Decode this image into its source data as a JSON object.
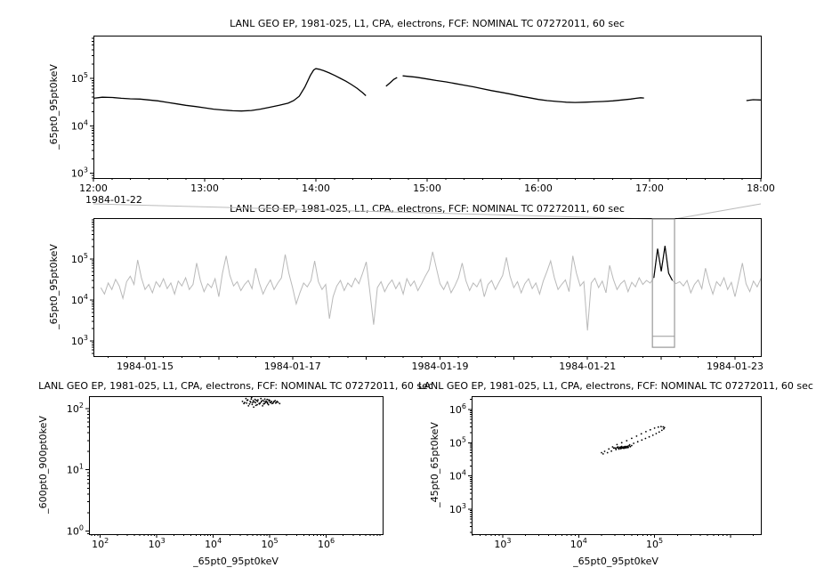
{
  "window": {
    "background": "#ffffff",
    "foreground": "#000000"
  },
  "colors": {
    "context_line": "#b9b9b9",
    "highlight": "#000000",
    "selection_box": "#999999",
    "connector": "#bbbbbb"
  },
  "chart_data": [
    {
      "id": "top-timeseries",
      "type": "line",
      "title": "LANL GEO EP, 1981-025, L1, CPA, electrons, FCF: NOMINAL TC 07272011, 60 sec",
      "ylabel": "_65pt0_95pt0keV",
      "x_context_label": "1984-01-22",
      "xlim": [
        12,
        18
      ],
      "ylim_log": [
        2.9,
        5.9
      ],
      "y_tick_exponents": [
        3,
        4,
        5
      ],
      "x_ticks": [
        {
          "v": 12,
          "label": "12:00"
        },
        {
          "v": 13,
          "label": "13:00"
        },
        {
          "v": 14,
          "label": "14:00"
        },
        {
          "v": 15,
          "label": "15:00"
        },
        {
          "v": 16,
          "label": "16:00"
        },
        {
          "v": 17,
          "label": "17:00"
        },
        {
          "v": 18,
          "label": "18:00"
        }
      ],
      "line_color": "#000000",
      "segments": [
        [
          [
            12.0,
            38000
          ],
          [
            12.08,
            40000
          ],
          [
            12.17,
            39500
          ],
          [
            12.25,
            38000
          ],
          [
            12.33,
            37000
          ],
          [
            12.42,
            36500
          ],
          [
            12.5,
            35000
          ],
          [
            12.58,
            33500
          ],
          [
            12.67,
            31000
          ],
          [
            12.75,
            29000
          ],
          [
            12.83,
            27000
          ],
          [
            12.92,
            25500
          ],
          [
            13.0,
            24000
          ],
          [
            13.08,
            22500
          ],
          [
            13.17,
            21500
          ],
          [
            13.25,
            20800
          ],
          [
            13.33,
            20500
          ],
          [
            13.42,
            21000
          ],
          [
            13.5,
            22500
          ],
          [
            13.58,
            24500
          ],
          [
            13.67,
            27000
          ],
          [
            13.75,
            30000
          ],
          [
            13.8,
            34000
          ],
          [
            13.85,
            42000
          ],
          [
            13.9,
            65000
          ],
          [
            13.95,
            115000
          ],
          [
            13.98,
            150000
          ],
          [
            14.0,
            160000
          ],
          [
            14.03,
            155000
          ],
          [
            14.07,
            145000
          ],
          [
            14.12,
            130000
          ],
          [
            14.17,
            115000
          ],
          [
            14.22,
            100000
          ],
          [
            14.27,
            87000
          ],
          [
            14.32,
            74000
          ],
          [
            14.37,
            62000
          ],
          [
            14.42,
            50000
          ],
          [
            14.45,
            43000
          ]
        ],
        [
          [
            14.63,
            68000
          ],
          [
            14.67,
            82000
          ],
          [
            14.7,
            95000
          ],
          [
            14.73,
            104000
          ]
        ],
        [
          [
            14.78,
            113000
          ],
          [
            14.83,
            110000
          ],
          [
            14.9,
            106000
          ],
          [
            15.0,
            97000
          ],
          [
            15.08,
            90000
          ],
          [
            15.17,
            84000
          ],
          [
            15.25,
            78000
          ],
          [
            15.33,
            72000
          ],
          [
            15.42,
            66000
          ],
          [
            15.5,
            60000
          ],
          [
            15.58,
            55000
          ],
          [
            15.67,
            50500
          ],
          [
            15.75,
            46500
          ],
          [
            15.83,
            42500
          ],
          [
            15.92,
            39000
          ],
          [
            16.0,
            36000
          ],
          [
            16.08,
            34000
          ],
          [
            16.17,
            32500
          ],
          [
            16.25,
            31500
          ],
          [
            16.33,
            31000
          ],
          [
            16.42,
            31500
          ],
          [
            16.5,
            32000
          ],
          [
            16.58,
            32500
          ],
          [
            16.67,
            33500
          ],
          [
            16.75,
            35000
          ],
          [
            16.83,
            36500
          ],
          [
            16.88,
            38000
          ],
          [
            16.92,
            39000
          ],
          [
            16.95,
            38500
          ]
        ],
        [
          [
            17.87,
            34000
          ],
          [
            17.93,
            35500
          ],
          [
            18.0,
            35000
          ]
        ]
      ]
    },
    {
      "id": "context-timeseries",
      "type": "line",
      "title": "LANL GEO EP, 1981-025, L1, CPA, electrons, FCF: NOMINAL TC 07272011, 60 sec",
      "ylabel": "_65pt0_95pt0keV",
      "xlim": [
        14.3,
        23.35
      ],
      "ylim_log": [
        2.63,
        6.0
      ],
      "y_tick_exponents": [
        3,
        4,
        5
      ],
      "x_ticks": [
        {
          "v": 15,
          "label": "1984-01-15"
        },
        {
          "v": 17,
          "label": "1984-01-17"
        },
        {
          "v": 19,
          "label": "1984-01-19"
        },
        {
          "v": 21,
          "label": "1984-01-21"
        },
        {
          "v": 23,
          "label": "1984-01-23"
        }
      ],
      "line_color": "#b9b9b9",
      "highlight_color": "#000000",
      "highlight_range": [
        21.88,
        22.17
      ],
      "selection_box": {
        "x0": 21.88,
        "x1": 22.18,
        "bottom_value": 700,
        "marker_value": 1300,
        "color": "#999999"
      },
      "start": 14.4,
      "step": 0.05,
      "values": [
        20000,
        14000,
        26000,
        18000,
        32000,
        22000,
        11000,
        28000,
        38000,
        24000,
        95000,
        35000,
        18000,
        24000,
        15000,
        28000,
        21000,
        33000,
        19000,
        26000,
        14000,
        29000,
        22000,
        35000,
        18000,
        24000,
        80000,
        30000,
        16000,
        25000,
        20000,
        33000,
        12000,
        45000,
        120000,
        40000,
        22000,
        28000,
        17000,
        24000,
        30000,
        19000,
        60000,
        26000,
        14000,
        22000,
        31000,
        18000,
        26000,
        35000,
        130000,
        45000,
        20000,
        8000,
        15000,
        26000,
        21000,
        30000,
        90000,
        28000,
        18000,
        24000,
        3500,
        12000,
        22000,
        30000,
        17000,
        26000,
        21000,
        34000,
        25000,
        45000,
        85000,
        15000,
        2500,
        20000,
        28000,
        16000,
        24000,
        31000,
        19000,
        27000,
        14000,
        33000,
        22000,
        29000,
        17000,
        25000,
        38000,
        55000,
        150000,
        60000,
        25000,
        18000,
        28000,
        15000,
        22000,
        35000,
        80000,
        30000,
        17000,
        26000,
        21000,
        32000,
        12000,
        24000,
        30000,
        18000,
        27000,
        40000,
        110000,
        38000,
        20000,
        28000,
        15000,
        25000,
        33000,
        19000,
        26000,
        14000,
        29000,
        50000,
        90000,
        35000,
        18000,
        24000,
        31000,
        16000,
        120000,
        45000,
        22000,
        28000,
        1800,
        26000,
        34000,
        20000,
        29000,
        15000,
        70000,
        32000,
        18000,
        25000,
        30000,
        16000,
        27000,
        21000,
        35000,
        24000,
        30000,
        26000,
        35000,
        180000,
        50000,
        210000,
        45000,
        30000,
        25000,
        28000,
        22000,
        30000,
        15000,
        24000,
        31000,
        19000,
        60000,
        26000,
        14000,
        28000,
        22000,
        35000,
        18000,
        27000,
        12000,
        30000,
        80000,
        25000,
        16000,
        29000,
        21000,
        33000,
        50000,
        24000,
        17000,
        28000,
        20000
      ]
    },
    {
      "id": "scatter-600-900",
      "type": "scatter",
      "title": "LANL GEO EP, 1981-025, L1, CPA, electrons, FCF: NOMINAL TC 07272011, 60 sec",
      "xlabel": "_65pt0_95pt0keV",
      "ylabel": "_600pt0_900pt0keV",
      "xlim_log": [
        1.8,
        7.0
      ],
      "ylim_log": [
        -0.05,
        2.2
      ],
      "x_tick_exponents": [
        2,
        3,
        4,
        5,
        6
      ],
      "y_tick_exponents": [
        0,
        1,
        2
      ],
      "points": [
        [
          35000,
          120
        ],
        [
          40000,
          135
        ],
        [
          42000,
          110
        ],
        [
          38000,
          145
        ],
        [
          50000,
          125
        ],
        [
          55000,
          140
        ],
        [
          60000,
          115
        ],
        [
          45000,
          130
        ],
        [
          48000,
          150
        ],
        [
          52000,
          105
        ],
        [
          58000,
          135
        ],
        [
          65000,
          120
        ],
        [
          70000,
          145
        ],
        [
          75000,
          110
        ],
        [
          80000,
          130
        ],
        [
          85000,
          125
        ],
        [
          90000,
          140
        ],
        [
          95000,
          115
        ],
        [
          100000,
          135
        ],
        [
          110000,
          120
        ],
        [
          120000,
          130
        ],
        [
          130000,
          125
        ],
        [
          36000,
          125
        ],
        [
          44000,
          118
        ],
        [
          47000,
          142
        ],
        [
          53000,
          128
        ],
        [
          57000,
          112
        ],
        [
          62000,
          138
        ],
        [
          68000,
          122
        ],
        [
          72000,
          132
        ],
        [
          78000,
          118
        ],
        [
          82000,
          142
        ],
        [
          88000,
          128
        ],
        [
          92000,
          120
        ],
        [
          98000,
          132
        ],
        [
          105000,
          126
        ],
        [
          115000,
          122
        ],
        [
          125000,
          134
        ],
        [
          33000,
          130
        ],
        [
          39000,
          122
        ],
        [
          41000,
          138
        ],
        [
          46000,
          126
        ],
        [
          49000,
          116
        ],
        [
          51000,
          134
        ],
        [
          56000,
          124
        ],
        [
          61000,
          130
        ],
        [
          66000,
          118
        ],
        [
          71000,
          128
        ],
        [
          76000,
          136
        ],
        [
          81000,
          120
        ],
        [
          86000,
          132
        ],
        [
          91000,
          126
        ],
        [
          96000,
          138
        ],
        [
          102000,
          124
        ],
        [
          108000,
          130
        ],
        [
          118000,
          128
        ],
        [
          128000,
          122
        ],
        [
          135000,
          130
        ],
        [
          140000,
          126
        ],
        [
          150000,
          120
        ]
      ]
    },
    {
      "id": "scatter-45-65",
      "type": "scatter",
      "title": "LANL GEO EP, 1981-025, L1, CPA, electrons, FCF: NOMINAL TC 07272011, 60 sec",
      "xlabel": "_65pt0_95pt0keV",
      "ylabel": "_45pt0_65pt0keV",
      "xlim_log": [
        2.59,
        6.4
      ],
      "ylim_log": [
        2.25,
        6.4
      ],
      "x_tick_exponents": [
        3,
        4,
        5
      ],
      "y_tick_exponents": [
        3,
        4,
        5,
        6
      ],
      "points": [
        [
          22000,
          55000
        ],
        [
          25000,
          65000
        ],
        [
          28000,
          75000
        ],
        [
          32000,
          88000
        ],
        [
          37000,
          100000
        ],
        [
          43000,
          115000
        ],
        [
          50000,
          135000
        ],
        [
          58000,
          158000
        ],
        [
          67000,
          185000
        ],
        [
          77000,
          215000
        ],
        [
          88000,
          245000
        ],
        [
          100000,
          275000
        ],
        [
          112000,
          295000
        ],
        [
          122000,
          305000
        ],
        [
          130000,
          300000
        ],
        [
          135000,
          285000
        ],
        [
          132000,
          260000
        ],
        [
          125000,
          235000
        ],
        [
          115000,
          210000
        ],
        [
          105000,
          188000
        ],
        [
          95000,
          168000
        ],
        [
          85000,
          150000
        ],
        [
          76000,
          134000
        ],
        [
          68000,
          120000
        ],
        [
          60000,
          107000
        ],
        [
          53000,
          96000
        ],
        [
          47000,
          86000
        ],
        [
          41000,
          77000
        ],
        [
          36000,
          69000
        ],
        [
          31000,
          62000
        ],
        [
          27000,
          56000
        ],
        [
          24000,
          50000
        ],
        [
          21000,
          46000
        ],
        [
          20000,
          50000
        ],
        [
          30000,
          70000
        ],
        [
          32000,
          72000
        ],
        [
          34000,
          68000
        ],
        [
          33000,
          75000
        ],
        [
          35000,
          71000
        ],
        [
          36000,
          74000
        ],
        [
          31000,
          66000
        ],
        [
          29000,
          69000
        ],
        [
          37000,
          77000
        ],
        [
          38000,
          72000
        ],
        [
          40000,
          75000
        ],
        [
          42000,
          70000
        ],
        [
          44000,
          78000
        ],
        [
          39000,
          68000
        ],
        [
          41000,
          73000
        ],
        [
          43000,
          76000
        ],
        [
          45000,
          72000
        ],
        [
          34000,
          64000
        ],
        [
          36000,
          66000
        ],
        [
          38000,
          70000
        ],
        [
          40000,
          68000
        ],
        [
          42000,
          74000
        ],
        [
          46000,
          80000
        ],
        [
          48000,
          76000
        ],
        [
          50000,
          82000
        ],
        [
          33000,
          70000
        ],
        [
          35000,
          73000
        ],
        [
          37000,
          69000
        ],
        [
          39000,
          74000
        ],
        [
          44000,
          71000
        ]
      ]
    }
  ]
}
